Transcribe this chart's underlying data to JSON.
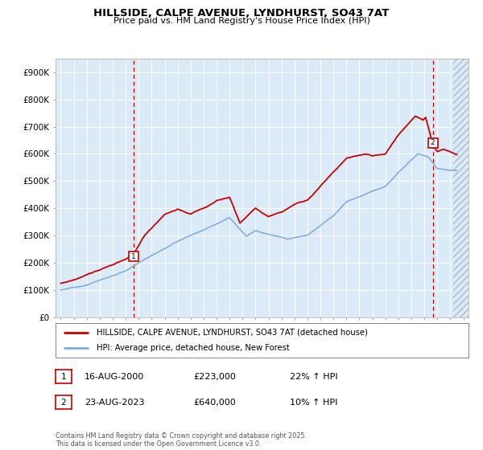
{
  "title": "HILLSIDE, CALPE AVENUE, LYNDHURST, SO43 7AT",
  "subtitle": "Price paid vs. HM Land Registry's House Price Index (HPI)",
  "ylim": [
    0,
    950000
  ],
  "yticks": [
    0,
    100000,
    200000,
    300000,
    400000,
    500000,
    600000,
    700000,
    800000,
    900000
  ],
  "ytick_labels": [
    "£0",
    "£100K",
    "£200K",
    "£300K",
    "£400K",
    "£500K",
    "£600K",
    "£700K",
    "£800K",
    "£900K"
  ],
  "xlim_start": 1994.6,
  "xlim_end": 2026.4,
  "plot_bg_color": "#daeaf8",
  "grid_color": "#ffffff",
  "red_line_color": "#cc0000",
  "blue_line_color": "#7aabdc",
  "marker1_date": 2000.63,
  "marker1_value": 223000,
  "marker2_date": 2023.65,
  "marker2_value": 640000,
  "vline1_x": 2000.63,
  "vline2_x": 2023.65,
  "hatch_start": 2025.25,
  "legend_line1": "HILLSIDE, CALPE AVENUE, LYNDHURST, SO43 7AT (detached house)",
  "legend_line2": "HPI: Average price, detached house, New Forest",
  "note1_label": "1",
  "note1_date": "16-AUG-2000",
  "note1_price": "£223,000",
  "note1_hpi": "22% ↑ HPI",
  "note2_label": "2",
  "note2_date": "23-AUG-2023",
  "note2_price": "£640,000",
  "note2_hpi": "10% ↑ HPI",
  "footer": "Contains HM Land Registry data © Crown copyright and database right 2025.\nThis data is licensed under the Open Government Licence v3.0."
}
